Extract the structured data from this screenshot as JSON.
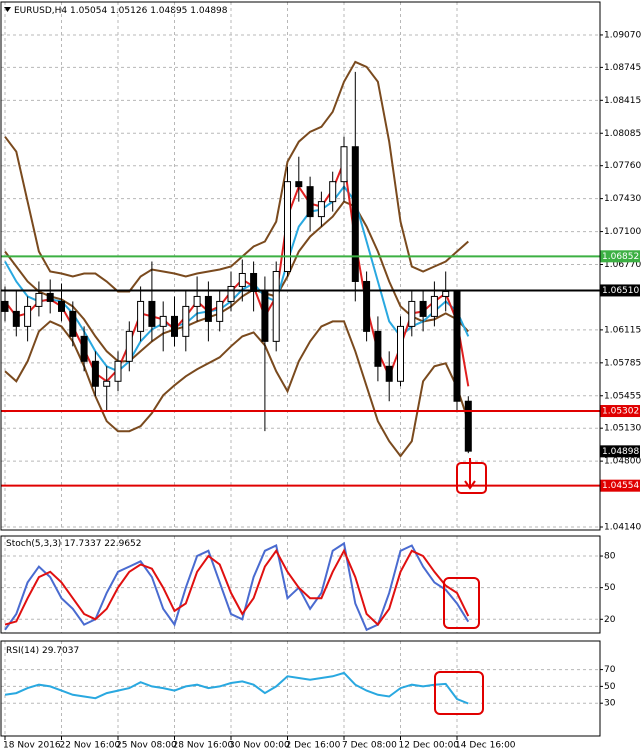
{
  "chart_data": [
    {
      "type": "candlestick",
      "symbol": "EURUSD,H4",
      "ohlc": [
        1.05054,
        1.05126,
        1.04895,
        1.04898
      ],
      "categories": [
        "18 Nov 2016",
        null,
        null,
        null,
        null,
        "22 Nov 16:00",
        null,
        null,
        null,
        null,
        "25 Nov 08:00",
        null,
        null,
        null,
        null,
        "28 Nov 16:00",
        null,
        null,
        null,
        null,
        "30 Nov 00:00",
        null,
        null,
        null,
        null,
        "2 Dec 16:00",
        null,
        null,
        null,
        null,
        "7 Dec 08:00",
        null,
        null,
        null,
        null,
        "12 Dec 00:00",
        null,
        null,
        null,
        null,
        "14 Dec 16:00",
        null
      ],
      "open": [
        1.064,
        1.063,
        1.0615,
        1.0635,
        1.0648,
        1.064,
        1.063,
        1.0605,
        1.058,
        1.0555,
        1.056,
        1.058,
        1.061,
        1.064,
        1.0615,
        1.0625,
        1.0605,
        1.0635,
        1.0645,
        1.062,
        1.064,
        1.0655,
        1.0668,
        1.065,
        1.06,
        1.067,
        1.076,
        1.0755,
        1.0725,
        1.074,
        1.076,
        1.0795,
        1.066,
        1.061,
        1.0575,
        1.056,
        1.0615,
        1.064,
        1.0625,
        1.0645,
        1.065,
        1.054
      ],
      "high": [
        1.0655,
        1.065,
        1.0645,
        1.066,
        1.0662,
        1.0658,
        1.064,
        1.0615,
        1.059,
        1.0575,
        1.059,
        1.062,
        1.0655,
        1.068,
        1.064,
        1.0645,
        1.065,
        1.0665,
        1.066,
        1.065,
        1.067,
        1.0682,
        1.068,
        1.0665,
        1.068,
        1.0775,
        1.0785,
        1.0765,
        1.075,
        1.077,
        1.0805,
        1.087,
        1.067,
        1.0625,
        1.059,
        1.0625,
        1.065,
        1.065,
        1.066,
        1.067,
        1.0652,
        1.0545
      ],
      "low": [
        1.062,
        1.0605,
        1.06,
        1.0625,
        1.0628,
        1.062,
        1.0595,
        1.057,
        1.0545,
        1.053,
        1.055,
        1.057,
        1.06,
        1.06,
        1.059,
        1.0595,
        1.059,
        1.062,
        1.06,
        1.061,
        1.063,
        1.064,
        1.063,
        1.051,
        1.059,
        1.0665,
        1.074,
        1.071,
        1.0715,
        1.073,
        1.074,
        1.064,
        1.06,
        1.056,
        1.054,
        1.0555,
        1.0605,
        1.061,
        1.0615,
        1.063,
        1.053,
        1.0488
      ],
      "close": [
        1.063,
        1.0615,
        1.0635,
        1.0648,
        1.064,
        1.063,
        1.0605,
        1.058,
        1.0555,
        1.056,
        1.058,
        1.061,
        1.064,
        1.0615,
        1.0625,
        1.0605,
        1.0635,
        1.0645,
        1.062,
        1.064,
        1.0655,
        1.0668,
        1.065,
        1.06,
        1.067,
        1.076,
        1.0755,
        1.0725,
        1.074,
        1.076,
        1.0795,
        1.066,
        1.061,
        1.0575,
        1.056,
        1.0615,
        1.064,
        1.0625,
        1.0645,
        1.065,
        1.054,
        1.049
      ],
      "series": [
        {
          "color": "#7a4a1e",
          "values": [
            1.0805,
            1.079,
            1.074,
            1.069,
            1.067,
            1.0668,
            1.0665,
            1.0668,
            1.0668,
            1.066,
            1.065,
            1.065,
            1.0665,
            1.0672,
            1.067,
            1.0668,
            1.0665,
            1.0668,
            1.067,
            1.0672,
            1.0675,
            1.0685,
            1.0695,
            1.07,
            1.072,
            1.078,
            1.08,
            1.081,
            1.0815,
            1.083,
            1.086,
            1.088,
            1.0875,
            1.086,
            1.08,
            1.072,
            1.0675,
            1.067,
            1.0675,
            1.068,
            1.069,
            1.07
          ]
        },
        {
          "color": "#7a4a1e",
          "values": [
            1.069,
            1.0675,
            1.066,
            1.065,
            1.0645,
            1.0642,
            1.0635,
            1.0622,
            1.0605,
            1.059,
            1.058,
            1.058,
            1.059,
            1.06,
            1.0608,
            1.0612,
            1.0615,
            1.062,
            1.0624,
            1.0628,
            1.0635,
            1.0645,
            1.0652,
            1.0648,
            1.0645,
            1.0665,
            1.069,
            1.0705,
            1.0715,
            1.0725,
            1.074,
            1.0735,
            1.0715,
            1.069,
            1.066,
            1.0635,
            1.0625,
            1.062,
            1.0622,
            1.0628,
            1.0622,
            1.061
          ]
        },
        {
          "color": "#7a4a1e",
          "values": [
            1.057,
            1.056,
            1.058,
            1.061,
            1.062,
            1.0615,
            1.06,
            1.0575,
            1.0545,
            1.052,
            1.051,
            1.051,
            1.0515,
            1.0528,
            1.0546,
            1.0556,
            1.0565,
            1.0572,
            1.0578,
            1.0584,
            1.0595,
            1.0605,
            1.0609,
            1.0596,
            1.057,
            1.055,
            1.058,
            1.06,
            1.0615,
            1.062,
            1.062,
            1.059,
            1.0555,
            1.052,
            1.05,
            1.0485,
            1.05,
            1.056,
            1.0575,
            1.0578,
            1.0554,
            1.052
          ]
        },
        {
          "color": "#29a8e0",
          "values": [
            1.068,
            1.066,
            1.0645,
            1.064,
            1.0642,
            1.064,
            1.0628,
            1.061,
            1.059,
            1.0575,
            1.057,
            1.058,
            1.06,
            1.0612,
            1.0618,
            1.0615,
            1.0618,
            1.0628,
            1.063,
            1.0632,
            1.064,
            1.0652,
            1.0658,
            1.0645,
            1.064,
            1.068,
            1.0715,
            1.073,
            1.0732,
            1.074,
            1.0755,
            1.074,
            1.07,
            1.066,
            1.062,
            1.0605,
            1.0615,
            1.062,
            1.063,
            1.064,
            1.063,
            1.0605
          ]
        },
        {
          "color": "#e02020",
          "values": [
            1.064,
            1.0625,
            1.0628,
            1.064,
            1.0642,
            1.0635,
            1.0615,
            1.0592,
            1.0568,
            1.056,
            1.0572,
            1.0598,
            1.0628,
            1.0625,
            1.0622,
            1.0612,
            1.0625,
            1.064,
            1.063,
            1.0635,
            1.065,
            1.0662,
            1.0655,
            1.0625,
            1.0645,
            1.0725,
            1.0755,
            1.0738,
            1.0735,
            1.0752,
            1.078,
            1.07,
            1.0635,
            1.059,
            1.0565,
            1.0595,
            1.0628,
            1.063,
            1.064,
            1.0648,
            1.062,
            1.0555
          ]
        }
      ],
      "levels": [
        {
          "value": 1.06852,
          "label": "1.06852",
          "color": "#3cb043"
        },
        {
          "value": 1.0651,
          "label": "1.06510",
          "color": "#000000"
        },
        {
          "value": 1.05302,
          "label": "1.05302",
          "color": "#e00000"
        },
        {
          "value": 1.04554,
          "label": "1.04554",
          "color": "#e00000"
        }
      ],
      "bid": {
        "value": 1.04898,
        "label": "1.04898"
      },
      "ylim": [
        1.0411,
        1.094
      ],
      "yticks": [
        {
          "value": 1.0907,
          "label": "1.09070"
        },
        {
          "value": 1.08745,
          "label": "1.08745"
        },
        {
          "value": 1.08415,
          "label": "1.08415"
        },
        {
          "value": 1.08085,
          "label": "1.08085"
        },
        {
          "value": 1.0776,
          "label": "1.07760"
        },
        {
          "value": 1.0743,
          "label": "1.07430"
        },
        {
          "value": 1.071,
          "label": "1.07100"
        },
        {
          "value": 1.0677,
          "label": "1.06770"
        },
        {
          "value": 1.06115,
          "label": "1.06115"
        },
        {
          "value": 1.05785,
          "label": "1.05785"
        },
        {
          "value": 1.05455,
          "label": "1.05455"
        },
        {
          "value": 1.0513,
          "label": "1.05130"
        },
        {
          "value": 1.048,
          "label": "1.04800"
        },
        {
          "value": 1.0414,
          "label": "1.04140"
        }
      ],
      "grid": true
    },
    {
      "type": "line",
      "title": "Stoch(5,3,3)",
      "readouts": [
        17.7337,
        22.9652
      ],
      "series": [
        {
          "color": "#4a6bd0",
          "values": [
            10,
            25,
            55,
            70,
            60,
            40,
            30,
            15,
            20,
            45,
            65,
            70,
            75,
            60,
            30,
            15,
            50,
            80,
            85,
            55,
            25,
            20,
            60,
            85,
            90,
            40,
            50,
            30,
            45,
            85,
            92,
            35,
            10,
            15,
            45,
            85,
            90,
            70,
            55,
            48,
            35,
            17.7
          ]
        },
        {
          "color": "#e01010",
          "values": [
            15,
            18,
            40,
            60,
            65,
            55,
            40,
            25,
            20,
            30,
            50,
            65,
            72,
            68,
            50,
            28,
            35,
            65,
            80,
            72,
            45,
            25,
            40,
            70,
            85,
            65,
            50,
            40,
            40,
            65,
            85,
            60,
            25,
            15,
            30,
            65,
            85,
            80,
            65,
            52,
            45,
            23
          ]
        }
      ],
      "ylim": [
        7,
        99
      ],
      "yticks": [
        20,
        50,
        80
      ],
      "grid": true
    },
    {
      "type": "line",
      "title": "RSI(14)",
      "readouts": [
        29.7037
      ],
      "series": [
        {
          "color": "#29a8e0",
          "values": [
            40,
            42,
            48,
            52,
            50,
            45,
            40,
            38,
            36,
            42,
            45,
            48,
            55,
            50,
            48,
            45,
            50,
            52,
            48,
            50,
            54,
            56,
            52,
            42,
            50,
            62,
            60,
            58,
            60,
            62,
            66,
            52,
            45,
            40,
            38,
            48,
            52,
            50,
            52,
            53,
            35,
            29.7
          ]
        }
      ],
      "ylim": [
        -9,
        104
      ],
      "yticks": [
        30,
        50,
        70
      ],
      "grid": true
    }
  ]
}
